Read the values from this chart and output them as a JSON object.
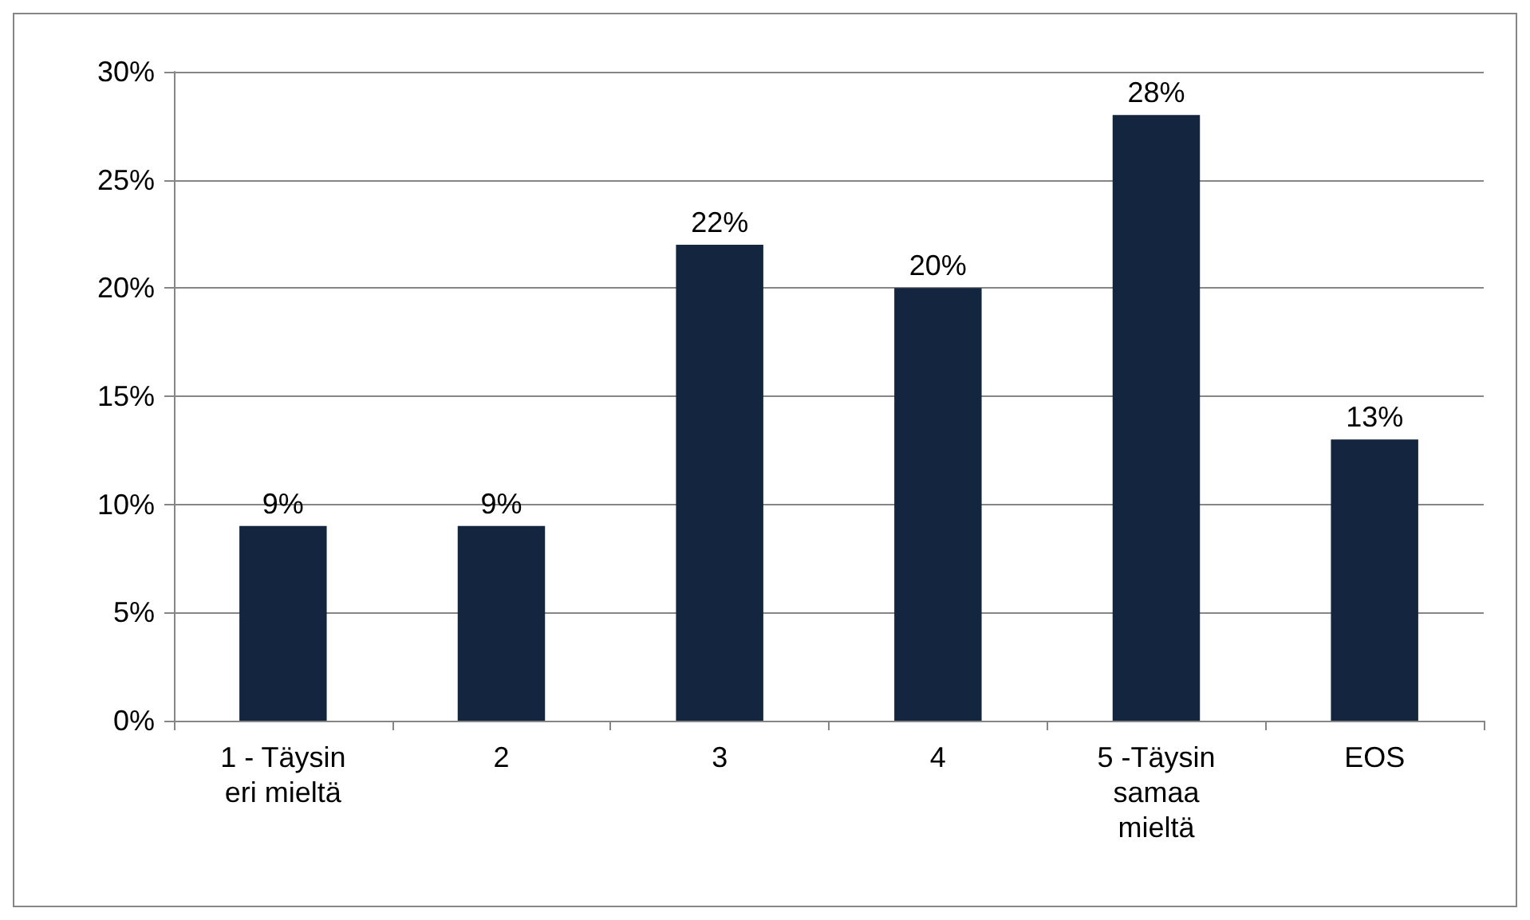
{
  "chart_data": {
    "type": "bar",
    "categories": [
      "1 - Täysin\neri mieltä",
      "2",
      "3",
      "4",
      "5 -Täysin\nsamaa\nmieltä",
      "EOS"
    ],
    "values": [
      9,
      9,
      22,
      20,
      28,
      13
    ],
    "value_labels": [
      "9%",
      "9%",
      "22%",
      "20%",
      "28%",
      "13%"
    ],
    "color": "#13253f",
    "ylim": [
      0,
      30
    ],
    "yticks": [
      {
        "value": 0,
        "label": "0%"
      },
      {
        "value": 5,
        "label": "5%"
      },
      {
        "value": 10,
        "label": "10%"
      },
      {
        "value": 15,
        "label": "15%"
      },
      {
        "value": 20,
        "label": "20%"
      },
      {
        "value": 25,
        "label": "25%"
      },
      {
        "value": 30,
        "label": "30%"
      }
    ],
    "grid": "y"
  }
}
